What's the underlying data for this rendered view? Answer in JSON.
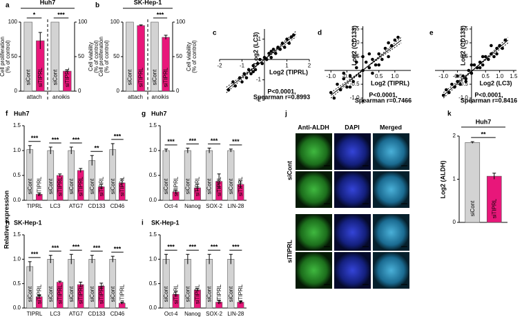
{
  "chart_data": [
    {
      "type": "bar",
      "panel": "a",
      "title": "Huh7",
      "categories": [
        "attach",
        "anoikis"
      ],
      "group_axes": [
        "y",
        "y2"
      ],
      "series": [
        {
          "name": "siCont",
          "color": "#d3d3d3",
          "values": [
            100,
            100
          ],
          "errors": [
            0,
            0
          ]
        },
        {
          "name": "siTIPRL",
          "color": "#e8177a",
          "values": [
            73,
            29
          ],
          "errors": [
            12,
            2
          ]
        }
      ],
      "ylim": [
        0,
        100
      ],
      "yticks": [
        0,
        50,
        100
      ],
      "ylabel": [
        "Cell proliferation",
        "(% of control)"
      ],
      "y2lim": [
        0,
        100
      ],
      "y2ticks": [
        0,
        50,
        100
      ],
      "y2label": [
        "Cell viability",
        "(% of control)"
      ],
      "significance": [
        "*",
        "***"
      ]
    },
    {
      "type": "bar",
      "panel": "b",
      "title": "SK-Hep-1",
      "categories": [
        "attach",
        "anoikis"
      ],
      "group_axes": [
        "y",
        "y2"
      ],
      "series": [
        {
          "name": "siCont",
          "color": "#d3d3d3",
          "values": [
            100,
            100
          ],
          "errors": [
            0,
            0
          ]
        },
        {
          "name": "siTIPRL",
          "color": "#e8177a",
          "values": [
            95,
            78
          ],
          "errors": [
            1,
            3
          ]
        }
      ],
      "ylim": [
        0,
        100
      ],
      "yticks": [
        0,
        50,
        100
      ],
      "ylabel": [
        "Cell proliferation",
        "(% of control)"
      ],
      "y2lim": [
        0,
        100
      ],
      "y2ticks": [
        0,
        50,
        100
      ],
      "y2label": [
        "Cell viability",
        "(% of control)"
      ],
      "significance": [
        null,
        "***"
      ]
    },
    {
      "type": "scatter",
      "panel": "c",
      "color": "#000000",
      "xlabel": "Log2 (TIPRL)",
      "ylabel": "Log2 (LC3)",
      "xlim": [
        -2,
        2
      ],
      "ylim": [
        -2,
        1.5
      ],
      "xticks": [
        -2,
        -1,
        1,
        2
      ],
      "yticks": [
        -2,
        -1,
        1
      ],
      "x": [
        -1.6,
        -1.4,
        -1.3,
        -1.1,
        -1.0,
        -0.9,
        -0.8,
        -0.7,
        -0.6,
        -0.5,
        -0.4,
        -0.3,
        -0.2,
        -0.1,
        0,
        0.1,
        0.2,
        0.3,
        0.4,
        0.5,
        0.6,
        0.7,
        0.8,
        0.9,
        1.0,
        1.1,
        1.2,
        1.3,
        -0.5,
        0.3
      ],
      "values": [
        -1.5,
        -1.1,
        -1.3,
        -0.9,
        -1.1,
        -0.7,
        -0.9,
        -0.5,
        -0.7,
        -0.3,
        -0.5,
        -0.2,
        0.0,
        -0.2,
        0.1,
        0.0,
        0.3,
        0.1,
        0.5,
        0.3,
        0.6,
        0.5,
        0.8,
        0.6,
        1.0,
        0.8,
        1.1,
        1.2,
        -0.6,
        0.4
      ],
      "trend_line": [
        [
          -1.7,
          -1.5
        ],
        [
          1.4,
          1.25
        ]
      ],
      "annotation": [
        "P<0.0001,",
        "Spearman r=0.8993"
      ]
    },
    {
      "type": "scatter",
      "panel": "d",
      "color": "#000000",
      "xlabel": "Log2 (TIPRL)",
      "ylabel": "Log2 (CD133)",
      "xlim": [
        -1.2,
        1.5
      ],
      "ylim": [
        -1.2,
        1.6
      ],
      "xticks": [
        {
          "value": -1,
          "label": "-1.0"
        },
        -0.5,
        0.5,
        {
          "value": 1,
          "label": "1.0"
        }
      ],
      "yticks": [
        {
          "value": -1,
          "label": "-1.0"
        },
        -0.5,
        0.5,
        {
          "value": 1,
          "label": "1.0"
        },
        1.5
      ],
      "x": [
        -1.0,
        -0.9,
        -0.8,
        -0.7,
        -0.6,
        -0.5,
        -0.4,
        -0.3,
        -0.2,
        -0.1,
        0,
        0.1,
        0.2,
        0.3,
        0.4,
        0.5,
        0.6,
        0.7,
        0.8,
        0.9,
        1.0,
        1.1,
        -0.6,
        -0.2,
        0.2,
        0.5,
        0.8,
        0.3,
        -0.4,
        0.0
      ],
      "values": [
        -0.8,
        -1.0,
        -0.5,
        -0.7,
        -0.3,
        -0.6,
        -0.2,
        -0.4,
        0.1,
        -0.2,
        0.0,
        0.3,
        0.1,
        0.4,
        0.2,
        0.6,
        0.4,
        0.8,
        0.5,
        0.9,
        1.1,
        1.2,
        -0.1,
        0.3,
        0.6,
        0.2,
        1.0,
        -0.1,
        -0.6,
        0.5
      ],
      "trend_line": [
        [
          -1.0,
          -0.9
        ],
        [
          1.2,
          1.1
        ]
      ],
      "annotation": [
        "P<0.0001,",
        "Spearman r=0.7466"
      ]
    },
    {
      "type": "scatter",
      "panel": "e",
      "color": "#000000",
      "xlabel": "Log2 (LC3)",
      "ylabel": "Log2 (CD133)",
      "xlim": [
        -1.3,
        1.6
      ],
      "ylim": [
        -1.2,
        1.6
      ],
      "xticks": [
        {
          "value": -1,
          "label": "-1.0"
        },
        -0.5,
        0.5,
        {
          "value": 1,
          "label": "1.0"
        },
        1.5
      ],
      "yticks": [
        {
          "value": -1,
          "label": "-1.0"
        },
        -0.5,
        0.5,
        {
          "value": 1,
          "label": "1.0"
        },
        1.5
      ],
      "x": [
        -1.0,
        -0.9,
        -0.8,
        -0.7,
        -0.6,
        -0.5,
        -0.4,
        -0.3,
        -0.2,
        -0.1,
        0,
        0.1,
        0.2,
        0.3,
        0.4,
        0.5,
        0.6,
        0.7,
        0.8,
        0.9,
        1.0,
        1.1,
        1.2,
        -0.5,
        0.0,
        0.4,
        0.7,
        -0.2,
        0.3,
        0.9
      ],
      "values": [
        -0.9,
        -0.7,
        -0.8,
        -0.5,
        -0.6,
        -0.4,
        -0.5,
        -0.2,
        -0.3,
        0.0,
        -0.1,
        0.2,
        0.1,
        0.3,
        0.2,
        0.5,
        0.4,
        0.6,
        0.5,
        0.8,
        0.9,
        0.8,
        1.1,
        -0.2,
        0.2,
        0.5,
        0.9,
        -0.4,
        0.1,
        0.6
      ],
      "trend_line": [
        [
          -1.0,
          -0.9
        ],
        [
          1.3,
          1.1
        ]
      ],
      "annotation": [
        "P<0.0001,",
        "Spearman r=0.8416"
      ]
    },
    {
      "type": "bar",
      "panel": "f",
      "title": "Huh7",
      "ylabel": [
        "Relative expression"
      ],
      "categories": [
        "TIPRL",
        "LC3",
        "ATG7",
        "CD133",
        "CD46"
      ],
      "series": [
        {
          "name": "siCont",
          "color": "#d3d3d3",
          "values": [
            1.02,
            1.0,
            1.0,
            0.8,
            1.02
          ],
          "errors": [
            0.08,
            0.07,
            0.07,
            0.1,
            0.12
          ]
        },
        {
          "name": "siTIPRL",
          "color": "#e8177a",
          "values": [
            0.12,
            0.5,
            0.6,
            0.27,
            0.35
          ],
          "errors": [
            0.03,
            0.03,
            0.04,
            0.05,
            0.08
          ]
        }
      ],
      "ylim": [
        0,
        1.5
      ],
      "yticks": [
        {
          "value": 0,
          "label": "0.0"
        },
        0.5,
        {
          "value": 1,
          "label": "1.0"
        },
        1.5
      ],
      "significance": [
        "***",
        "***",
        "***",
        "**",
        "***"
      ]
    },
    {
      "type": "bar",
      "panel": "g",
      "title": "Huh7",
      "categories": [
        "Oct-4",
        "Nanog",
        "SOX-2",
        "LIN-28"
      ],
      "series": [
        {
          "name": "siCont",
          "color": "#d3d3d3",
          "values": [
            1.0,
            1.0,
            1.0,
            1.0
          ],
          "errors": [
            0.03,
            0.05,
            0.05,
            0.03
          ]
        },
        {
          "name": "siTIPRL",
          "color": "#e8177a",
          "values": [
            0.17,
            0.25,
            0.38,
            0.32
          ],
          "errors": [
            0.04,
            0.07,
            0.15,
            0.07
          ]
        }
      ],
      "ylim": [
        0,
        1.5
      ],
      "yticks": [
        {
          "value": 0,
          "label": "0.0"
        },
        0.5,
        {
          "value": 1,
          "label": "1.0"
        },
        1.5
      ],
      "significance": [
        "***",
        "***",
        "***",
        "***"
      ]
    },
    {
      "type": "bar",
      "panel": "h",
      "title": "SK-Hep-1",
      "categories": [
        "TIPRL",
        "LC3",
        "ATG7",
        "CD133",
        "CD46"
      ],
      "series": [
        {
          "name": "siCont",
          "color": "#d3d3d3",
          "values": [
            0.85,
            1.0,
            1.0,
            1.0,
            1.0
          ],
          "errors": [
            0.1,
            0.08,
            0.1,
            0.08,
            0.06
          ]
        },
        {
          "name": "siTIPRL",
          "color": "#e8177a",
          "values": [
            0.23,
            0.53,
            0.48,
            0.45,
            0.1
          ],
          "errors": [
            0.03,
            0.02,
            0.05,
            0.06,
            0.02
          ]
        }
      ],
      "ylim": [
        0,
        1.5
      ],
      "yticks": [
        {
          "value": 0,
          "label": "0.0"
        },
        0.5,
        {
          "value": 1,
          "label": "1.0"
        },
        1.5
      ],
      "significance": [
        "***",
        "***",
        "***",
        "***",
        "***"
      ]
    },
    {
      "type": "bar",
      "panel": "i",
      "title": "SK-Hep-1",
      "categories": [
        "Oct-4",
        "Nanog",
        "SOX-2",
        "LIN-28"
      ],
      "series": [
        {
          "name": "siCont",
          "color": "#d3d3d3",
          "values": [
            1.0,
            1.0,
            1.0,
            1.0
          ],
          "errors": [
            0.1,
            0.1,
            0.1,
            0.1
          ]
        },
        {
          "name": "siTIPRL",
          "color": "#e8177a",
          "values": [
            0.28,
            0.37,
            0.12,
            0.12
          ],
          "errors": [
            0.05,
            0.03,
            0.04,
            0.02
          ]
        }
      ],
      "ylim": [
        0,
        1.5
      ],
      "yticks": [
        {
          "value": 0,
          "label": "0.0"
        },
        0.5,
        {
          "value": 1,
          "label": "1.0"
        },
        1.5
      ],
      "significance": [
        "***",
        "***",
        "***",
        "***"
      ]
    },
    {
      "type": "bar",
      "panel": "k",
      "title": "Huh7",
      "ylabel": [
        "Log2 (ALDH)"
      ],
      "series": [
        {
          "name": "siCont",
          "color": "#d3d3d3",
          "values": [
            1.85
          ],
          "errors": [
            0.02
          ]
        },
        {
          "name": "siTIPRL",
          "color": "#e8177a",
          "values": [
            1.07
          ],
          "errors": [
            0.07
          ]
        }
      ],
      "ylim": [
        0,
        2
      ],
      "yticks": [
        0,
        1,
        2
      ],
      "significance": [
        "**"
      ]
    }
  ],
  "image_panel": {
    "panel": "j",
    "columns": [
      "Anti-ALDH",
      "DAPI",
      "Merged"
    ],
    "row_labels": [
      "siCont",
      "siTIPRL"
    ]
  }
}
